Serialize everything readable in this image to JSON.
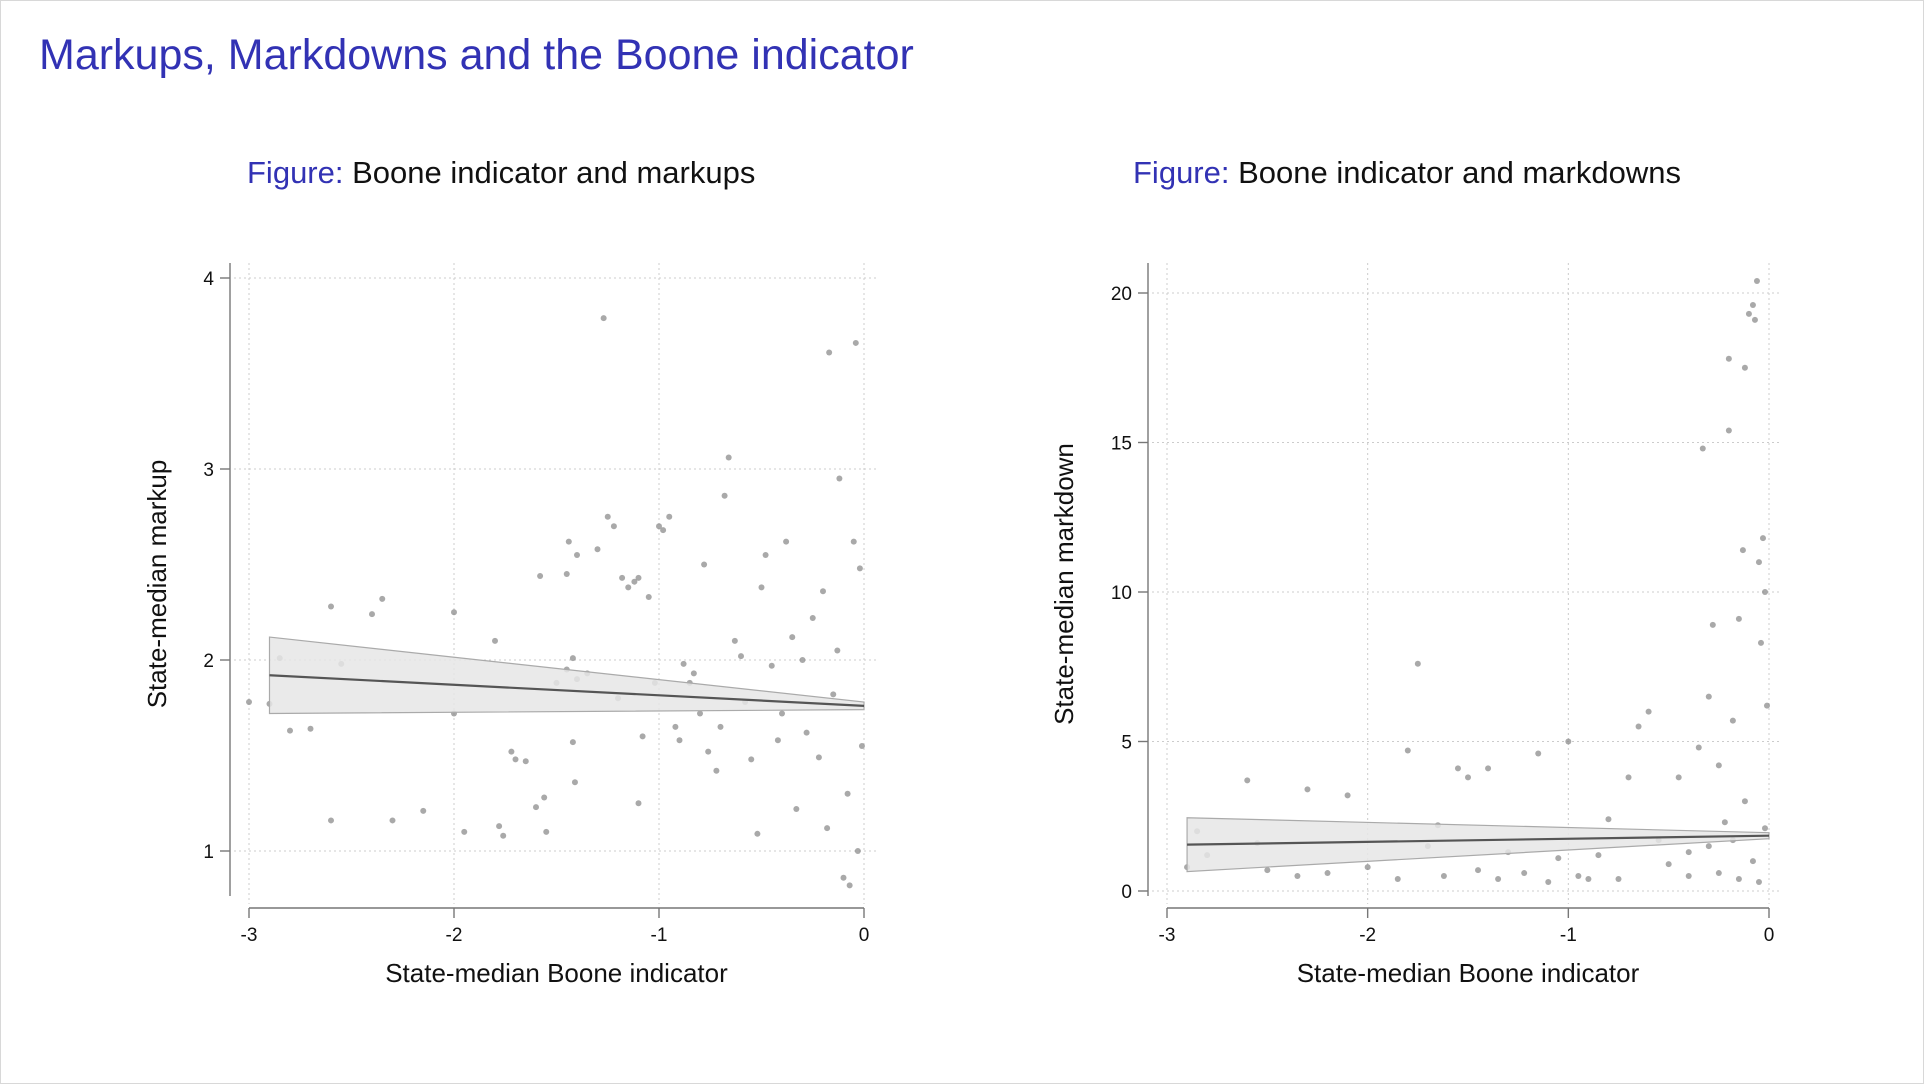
{
  "title": "Markups, Markdowns and the Boone indicator",
  "panels": {
    "left": {
      "prefix": "Figure:",
      "title": "Boone indicator and markups"
    },
    "right": {
      "prefix": "Figure:",
      "title": "Boone indicator and markdowns"
    }
  },
  "colors": {
    "title": "#3232b4",
    "points": "#8c8c8c",
    "fit_line": "#555555",
    "ci_band": "#e6e6e6",
    "ci_edge": "#aaaaaa",
    "grid": "#cccccc"
  },
  "chart_data": [
    {
      "type": "scatter",
      "title": "Boone indicator and markups",
      "xlabel": "State-median Boone indicator",
      "ylabel": "State-median markup",
      "xlim": [
        -3,
        0
      ],
      "ylim": [
        0.75,
        4.1
      ],
      "xticks": [
        -3,
        -2,
        -1,
        0
      ],
      "xtick_labels": [
        "-3",
        "-2",
        "-1",
        "0"
      ],
      "yticks": [
        1,
        2,
        3,
        4
      ],
      "ytick_labels": [
        "1",
        "2",
        "3",
        "4"
      ],
      "grid": true,
      "fit": {
        "x": [
          -2.9,
          0
        ],
        "y": [
          1.92,
          1.76
        ],
        "ci_low": [
          1.72,
          1.74
        ],
        "ci_high": [
          2.12,
          1.78
        ]
      },
      "points": [
        [
          -2.9,
          1.77
        ],
        [
          -2.85,
          2.01
        ],
        [
          -2.8,
          1.63
        ],
        [
          -2.6,
          2.28
        ],
        [
          -2.6,
          1.16
        ],
        [
          -2.55,
          1.98
        ],
        [
          -2.4,
          2.24
        ],
        [
          -2.35,
          2.32
        ],
        [
          -2.3,
          1.16
        ],
        [
          -2.15,
          1.21
        ],
        [
          -2.0,
          2.25
        ],
        [
          -2.0,
          1.72
        ],
        [
          -1.95,
          1.1
        ],
        [
          -1.8,
          2.1
        ],
        [
          -1.78,
          1.13
        ],
        [
          -1.76,
          1.08
        ],
        [
          -1.72,
          1.52
        ],
        [
          -1.7,
          1.48
        ],
        [
          -1.65,
          1.47
        ],
        [
          -1.6,
          1.23
        ],
        [
          -1.58,
          2.44
        ],
        [
          -1.56,
          1.28
        ],
        [
          -1.55,
          1.1
        ],
        [
          -1.5,
          1.88
        ],
        [
          -1.45,
          1.95
        ],
        [
          -1.45,
          2.45
        ],
        [
          -1.44,
          2.62
        ],
        [
          -1.42,
          2.01
        ],
        [
          -1.42,
          1.57
        ],
        [
          -1.41,
          1.36
        ],
        [
          -1.4,
          1.9
        ],
        [
          -1.4,
          2.55
        ],
        [
          -1.35,
          1.93
        ],
        [
          -1.3,
          2.58
        ],
        [
          -1.27,
          3.79
        ],
        [
          -1.25,
          2.75
        ],
        [
          -1.22,
          2.7
        ],
        [
          -1.2,
          1.8
        ],
        [
          -1.18,
          2.43
        ],
        [
          -1.15,
          2.38
        ],
        [
          -1.12,
          2.41
        ],
        [
          -1.1,
          2.43
        ],
        [
          -1.1,
          1.25
        ],
        [
          -1.08,
          1.6
        ],
        [
          -1.05,
          2.33
        ],
        [
          -1.02,
          1.88
        ],
        [
          -1.0,
          2.7
        ],
        [
          -0.98,
          2.68
        ],
        [
          -0.95,
          2.75
        ],
        [
          -0.92,
          1.65
        ],
        [
          -0.9,
          1.58
        ],
        [
          -0.88,
          1.98
        ],
        [
          -0.85,
          1.88
        ],
        [
          -0.83,
          1.93
        ],
        [
          -0.8,
          1.72
        ],
        [
          -0.78,
          2.5
        ],
        [
          -0.76,
          1.52
        ],
        [
          -0.72,
          1.42
        ],
        [
          -0.7,
          1.65
        ],
        [
          -0.68,
          2.86
        ],
        [
          -0.66,
          3.06
        ],
        [
          -0.63,
          2.1
        ],
        [
          -0.6,
          2.02
        ],
        [
          -0.58,
          1.78
        ],
        [
          -0.55,
          1.48
        ],
        [
          -0.52,
          1.09
        ],
        [
          -0.5,
          2.38
        ],
        [
          -0.48,
          2.55
        ],
        [
          -0.45,
          1.97
        ],
        [
          -0.42,
          1.58
        ],
        [
          -0.4,
          1.72
        ],
        [
          -0.38,
          2.62
        ],
        [
          -0.35,
          2.12
        ],
        [
          -0.33,
          1.22
        ],
        [
          -0.3,
          2.0
        ],
        [
          -0.28,
          1.62
        ],
        [
          -0.25,
          2.22
        ],
        [
          -0.22,
          1.49
        ],
        [
          -0.2,
          2.36
        ],
        [
          -0.18,
          1.12
        ],
        [
          -0.17,
          3.61
        ],
        [
          -0.15,
          1.82
        ],
        [
          -0.13,
          2.05
        ],
        [
          -0.12,
          2.95
        ],
        [
          -0.1,
          0.86
        ],
        [
          -0.08,
          1.3
        ],
        [
          -0.07,
          0.82
        ],
        [
          -0.05,
          2.62
        ],
        [
          -0.04,
          3.66
        ],
        [
          -0.03,
          1.0
        ],
        [
          -0.02,
          2.48
        ],
        [
          -0.01,
          1.55
        ],
        [
          -3.0,
          1.78
        ],
        [
          -2.7,
          1.64
        ]
      ]
    },
    {
      "type": "scatter",
      "title": "Boone indicator and markdowns",
      "xlabel": "State-median Boone indicator",
      "ylabel": "State-median markdown",
      "xlim": [
        -3,
        0
      ],
      "ylim": [
        -0.6,
        20.6
      ],
      "xticks": [
        -3,
        -2,
        -1,
        0
      ],
      "xtick_labels": [
        "-3",
        "-2",
        "-1",
        "0"
      ],
      "yticks": [
        0,
        5,
        10,
        15,
        20
      ],
      "ytick_labels": [
        "0",
        "5",
        "10",
        "15",
        "20"
      ],
      "grid": true,
      "fit": {
        "x": [
          -2.9,
          0
        ],
        "y": [
          1.55,
          1.85
        ],
        "ci_low": [
          0.65,
          1.75
        ],
        "ci_high": [
          2.45,
          1.95
        ]
      },
      "points": [
        [
          -2.9,
          0.8
        ],
        [
          -2.85,
          2.0
        ],
        [
          -2.8,
          1.2
        ],
        [
          -2.6,
          3.7
        ],
        [
          -2.55,
          1.6
        ],
        [
          -2.5,
          0.7
        ],
        [
          -2.35,
          0.5
        ],
        [
          -2.3,
          3.4
        ],
        [
          -2.2,
          0.6
        ],
        [
          -2.1,
          3.2
        ],
        [
          -2.0,
          0.8
        ],
        [
          -1.85,
          0.4
        ],
        [
          -1.8,
          4.7
        ],
        [
          -1.75,
          7.6
        ],
        [
          -1.7,
          1.5
        ],
        [
          -1.65,
          2.2
        ],
        [
          -1.62,
          0.5
        ],
        [
          -1.55,
          4.1
        ],
        [
          -1.5,
          3.8
        ],
        [
          -1.45,
          0.7
        ],
        [
          -1.4,
          4.1
        ],
        [
          -1.35,
          0.4
        ],
        [
          -1.3,
          1.3
        ],
        [
          -1.22,
          0.6
        ],
        [
          -1.15,
          4.6
        ],
        [
          -1.1,
          0.3
        ],
        [
          -1.05,
          1.1
        ],
        [
          -1.0,
          5.0
        ],
        [
          -0.95,
          0.5
        ],
        [
          -0.9,
          0.4
        ],
        [
          -0.85,
          1.2
        ],
        [
          -0.8,
          2.4
        ],
        [
          -0.75,
          0.4
        ],
        [
          -0.7,
          3.8
        ],
        [
          -0.65,
          5.5
        ],
        [
          -0.6,
          6.0
        ],
        [
          -0.55,
          1.7
        ],
        [
          -0.5,
          0.9
        ],
        [
          -0.45,
          3.8
        ],
        [
          -0.4,
          1.3
        ],
        [
          -0.35,
          4.8
        ],
        [
          -0.33,
          14.8
        ],
        [
          -0.3,
          6.5
        ],
        [
          -0.28,
          8.9
        ],
        [
          -0.25,
          4.2
        ],
        [
          -0.22,
          2.3
        ],
        [
          -0.2,
          15.4
        ],
        [
          -0.2,
          17.8
        ],
        [
          -0.18,
          5.7
        ],
        [
          -0.15,
          9.1
        ],
        [
          -0.13,
          11.4
        ],
        [
          -0.12,
          17.5
        ],
        [
          -0.1,
          19.3
        ],
        [
          -0.08,
          19.6
        ],
        [
          -0.07,
          19.1
        ],
        [
          -0.06,
          20.4
        ],
        [
          -0.05,
          11.0
        ],
        [
          -0.04,
          8.3
        ],
        [
          -0.03,
          11.8
        ],
        [
          -0.02,
          10.0
        ],
        [
          -0.01,
          6.2
        ],
        [
          -0.02,
          2.1
        ],
        [
          -0.05,
          0.3
        ],
        [
          -0.08,
          1.0
        ],
        [
          -0.12,
          3.0
        ],
        [
          -0.15,
          0.4
        ],
        [
          -0.18,
          1.7
        ],
        [
          -0.25,
          0.6
        ],
        [
          -0.3,
          1.5
        ],
        [
          -0.4,
          0.5
        ]
      ]
    }
  ]
}
